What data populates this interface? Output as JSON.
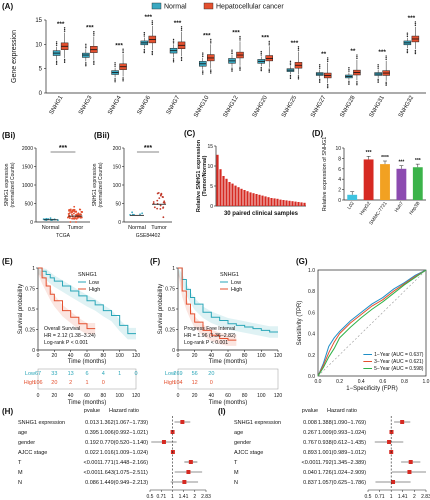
{
  "panels": {
    "A": "(A)",
    "Bi": "(Bi)",
    "Bii": "(Bii)",
    "C": "(C)",
    "D": "(D)",
    "E": "(E)",
    "F": "(F)",
    "G": "(G)",
    "H": "(H)",
    "I": "(I)"
  },
  "colors": {
    "normal": "#3aa8c1",
    "cancer": "#e4502f",
    "bar_red": "#d62a22",
    "low": "#2aa6b8",
    "high": "#e4502f"
  },
  "chart_data": [
    {
      "id": "A",
      "type": "box",
      "ylabel": "Gene expression",
      "ylim": [
        0,
        15
      ],
      "yticks": [
        0,
        5,
        10,
        15
      ],
      "legend": [
        "Normal",
        "Hepatocellular cancer"
      ],
      "legend_position": "top",
      "categories": [
        "SNHG1",
        "SNHG3",
        "SNHG4",
        "SNHG6",
        "SNHG7",
        "SNHG10",
        "SNHG12",
        "SNHG20",
        "SNHG25",
        "SNHG27",
        "SNHG28",
        "SNHG31",
        "SNHG32"
      ],
      "significance": [
        "***",
        "***",
        "***",
        "***",
        "***",
        "***",
        "***",
        "***",
        "***",
        "**",
        "**",
        "***",
        "***"
      ],
      "series": [
        {
          "name": "Normal",
          "median": [
            8.2,
            7.8,
            4.2,
            10.3,
            8.7,
            6.0,
            6.6,
            6.5,
            4.7,
            3.9,
            3.4,
            3.9,
            10.3
          ],
          "q1": [
            7.7,
            7.3,
            3.8,
            9.9,
            8.2,
            5.5,
            6.1,
            6.1,
            4.4,
            3.6,
            3.1,
            3.6,
            9.9
          ],
          "q3": [
            8.7,
            8.2,
            4.6,
            10.7,
            9.2,
            6.5,
            7.1,
            6.9,
            5.0,
            4.2,
            3.7,
            4.2,
            10.7
          ],
          "lo": [
            6.8,
            6.5,
            3.2,
            9.2,
            7.3,
            4.8,
            5.4,
            5.5,
            3.9,
            3.1,
            2.7,
            3.1,
            9.2
          ],
          "hi": [
            9.5,
            9.0,
            5.2,
            11.4,
            10.0,
            7.2,
            7.8,
            7.5,
            5.5,
            4.8,
            4.2,
            4.8,
            11.3
          ]
        },
        {
          "name": "Hepatocellular cancer",
          "median": [
            9.6,
            8.9,
            5.4,
            11.0,
            9.8,
            7.2,
            7.8,
            7.1,
            5.7,
            3.6,
            4.2,
            4.1,
            11.1
          ],
          "q1": [
            8.9,
            8.3,
            4.8,
            10.3,
            9.1,
            6.6,
            7.2,
            6.6,
            5.1,
            3.1,
            3.7,
            3.6,
            10.5
          ],
          "q3": [
            10.3,
            9.6,
            6.0,
            11.7,
            10.5,
            7.9,
            8.4,
            7.7,
            6.3,
            4.1,
            4.7,
            4.6,
            11.7
          ],
          "lo": [
            7.2,
            6.8,
            3.4,
            8.8,
            7.6,
            5.0,
            5.6,
            5.2,
            3.8,
            2.0,
            2.6,
            2.5,
            9.0
          ],
          "hi": [
            12.4,
            11.6,
            8.0,
            13.8,
            12.6,
            10.0,
            10.6,
            9.6,
            8.5,
            6.2,
            6.8,
            6.6,
            13.6
          ]
        }
      ]
    },
    {
      "id": "Bi",
      "type": "scatter",
      "ylabel": "SNHG1 expression (normalized Counts)",
      "categories": [
        "Normal",
        "Tumor"
      ],
      "xlabel": "TCGA",
      "ylim": [
        0,
        2000
      ],
      "yticks": [
        0,
        500,
        1000,
        1500,
        2000
      ],
      "significance": "***",
      "mean": [
        60,
        160
      ],
      "spread": [
        40,
        260
      ]
    },
    {
      "id": "Bii",
      "type": "scatter",
      "ylabel": "SNHG1 expression (normalized Counts)",
      "categories": [
        "Normal",
        "Tumor"
      ],
      "xlabel": "GSE84402",
      "ylim": [
        0,
        200
      ],
      "yticks": [
        0,
        50,
        100,
        150,
        200
      ],
      "significance": "***",
      "mean": [
        18,
        48
      ],
      "spread": [
        12,
        45
      ]
    },
    {
      "id": "C",
      "type": "bar",
      "ylabel": "Relative SNHG1 expression (Tumor/Normal)",
      "xlabel": "30 paired clinical samples",
      "ylim": [
        0,
        15
      ],
      "yticks": [
        0,
        5,
        10,
        15
      ],
      "values": [
        12.8,
        9.2,
        7.5,
        6.8,
        6.0,
        5.6,
        5.1,
        4.7,
        4.3,
        4.0,
        3.7,
        3.4,
        3.2,
        3.0,
        2.8,
        2.6,
        2.4,
        2.2,
        2.0,
        1.9,
        1.8,
        1.6,
        1.5,
        1.4,
        1.3,
        1.2,
        1.1,
        1.0,
        0.9,
        0.8
      ]
    },
    {
      "id": "D",
      "type": "bar",
      "ylabel": "Relative expression of SNHG1",
      "ylim": [
        0,
        10
      ],
      "yticks": [
        0,
        2,
        4,
        6,
        8,
        10
      ],
      "categories": [
        "L02",
        "HepG2",
        "SMMC-7721",
        "Huh7",
        "Hep3B"
      ],
      "values": [
        1.0,
        7.8,
        6.9,
        6.0,
        6.3
      ],
      "bar_colors": [
        "#3ec3e0",
        "#d62a22",
        "#f2a122",
        "#8c4bb0",
        "#3bb34a"
      ],
      "significance": [
        "",
        "***",
        "****",
        "***",
        "***"
      ]
    },
    {
      "id": "E",
      "type": "line",
      "title": "SNHG1",
      "legend": [
        "Low",
        "High"
      ],
      "xlabel": "Time (months)",
      "ylabel": "Survival probability",
      "xlim": [
        0,
        120
      ],
      "xticks": [
        0,
        20,
        40,
        60,
        80,
        100,
        120
      ],
      "ylim": [
        0,
        1
      ],
      "yticks": [
        0,
        0.25,
        0.5,
        0.75,
        1
      ],
      "annotation": [
        "Overall Survival",
        "HR = 2.12 (1.38−3.24)",
        "Log-rank P < 0.001"
      ],
      "series": [
        {
          "name": "Low",
          "x": [
            0,
            5,
            10,
            15,
            20,
            30,
            40,
            50,
            60,
            70,
            80,
            90,
            100,
            110,
            120
          ],
          "y": [
            1,
            0.96,
            0.92,
            0.88,
            0.84,
            0.78,
            0.72,
            0.66,
            0.6,
            0.55,
            0.48,
            0.42,
            0.3,
            0.2,
            0.2
          ]
        },
        {
          "name": "High",
          "x": [
            0,
            5,
            10,
            15,
            20,
            30,
            40,
            50,
            60,
            70
          ],
          "y": [
            1,
            0.88,
            0.78,
            0.68,
            0.6,
            0.48,
            0.4,
            0.32,
            0.26,
            0.26
          ]
        }
      ],
      "risk_table": {
        "rows": [
          "Low",
          "High"
        ],
        "times": [
          0,
          20,
          40,
          60,
          80,
          100,
          120
        ],
        "values": [
          [
            "67",
            "33",
            "13",
            "6",
            "4",
            "1",
            "0"
          ],
          [
            "106",
            "20",
            "2",
            "1",
            "0",
            "",
            ""
          ]
        ]
      }
    },
    {
      "id": "F",
      "type": "line",
      "title": "SNHG1",
      "legend": [
        "Low",
        "High"
      ],
      "xlabel": "Time (months)",
      "ylabel": "Survival probability",
      "xlim": [
        0,
        120
      ],
      "xticks": [
        0,
        20,
        40,
        60,
        80,
        100,
        120
      ],
      "ylim": [
        0,
        1
      ],
      "yticks": [
        0,
        0.25,
        0.5,
        0.75,
        1
      ],
      "annotation": [
        "Progress  Free  Interval",
        "HR = 1.96 (1.36−2.82)",
        "Log-rank P < 0.001"
      ],
      "series": [
        {
          "name": "Low",
          "x": [
            0,
            5,
            10,
            15,
            20,
            30,
            40,
            50,
            60,
            70,
            80,
            90,
            100,
            110,
            120
          ],
          "y": [
            1,
            0.86,
            0.74,
            0.64,
            0.56,
            0.46,
            0.4,
            0.36,
            0.32,
            0.3,
            0.28,
            0.26,
            0.24,
            0.22,
            0.22
          ]
        },
        {
          "name": "High",
          "x": [
            0,
            5,
            10,
            15,
            20,
            30,
            40,
            50,
            60,
            70
          ],
          "y": [
            1,
            0.72,
            0.56,
            0.44,
            0.34,
            0.24,
            0.18,
            0.14,
            0.12,
            0.12
          ]
        }
      ],
      "risk_table": {
        "rows": [
          "Low",
          "High"
        ],
        "times": [
          0,
          20,
          40,
          60,
          80,
          100,
          120
        ],
        "values": [
          [
            "269",
            "56",
            "20",
            "",
            "",
            "",
            ""
          ],
          [
            "104",
            "12",
            "0",
            "",
            "",
            "",
            ""
          ]
        ]
      }
    },
    {
      "id": "G",
      "type": "line",
      "xlabel": "1−Specificity (FPR)",
      "ylabel": "Sensitivity (TPR)",
      "xlim": [
        0,
        1
      ],
      "ylim": [
        0,
        1
      ],
      "xticks": [
        0,
        0.2,
        0.4,
        0.6,
        0.8,
        1.0
      ],
      "yticks": [
        0,
        0.2,
        0.4,
        0.6,
        0.8,
        1.0
      ],
      "legend": [
        "1−Year (AUC = 0.637)",
        "3−Year (AUC = 0.621)",
        "5−Year (AUC = 0.598)"
      ],
      "series": [
        {
          "name": "1−Year (AUC = 0.637)",
          "color": "#1f8fc7",
          "x": [
            0,
            0.05,
            0.1,
            0.15,
            0.2,
            0.3,
            0.4,
            0.5,
            0.6,
            0.7,
            0.8,
            0.9,
            1
          ],
          "y": [
            0,
            0.12,
            0.28,
            0.36,
            0.42,
            0.52,
            0.6,
            0.68,
            0.74,
            0.82,
            0.88,
            0.95,
            1
          ]
        },
        {
          "name": "3−Year (AUC = 0.621)",
          "color": "#e4502f",
          "x": [
            0,
            0.05,
            0.1,
            0.15,
            0.2,
            0.3,
            0.4,
            0.5,
            0.6,
            0.7,
            0.8,
            0.9,
            1
          ],
          "y": [
            0,
            0.1,
            0.22,
            0.32,
            0.4,
            0.5,
            0.58,
            0.66,
            0.72,
            0.8,
            0.87,
            0.94,
            1
          ]
        },
        {
          "name": "5−Year (AUC = 0.598)",
          "color": "#2fb24a",
          "x": [
            0,
            0.05,
            0.1,
            0.15,
            0.2,
            0.3,
            0.4,
            0.5,
            0.6,
            0.7,
            0.8,
            0.9,
            1
          ],
          "y": [
            0,
            0.08,
            0.18,
            0.26,
            0.36,
            0.46,
            0.55,
            0.63,
            0.7,
            0.78,
            0.86,
            0.93,
            1
          ]
        }
      ]
    },
    {
      "id": "H",
      "type": "forest",
      "headers": [
        "pvalue",
        "Hazard ratio"
      ],
      "rows": [
        {
          "label": "SNHG1 expression",
          "p": "0.013",
          "hr_text": "1.362(1.067−1.739)",
          "hr": 1.362,
          "lo": 1.067,
          "hi": 1.739
        },
        {
          "label": "age",
          "p": "0.395",
          "hr_text": "1.006(0.992−1.021)",
          "hr": 1.006,
          "lo": 0.992,
          "hi": 1.021
        },
        {
          "label": "gender",
          "p": "0.192",
          "hr_text": "0.770(0.520−1.140)",
          "hr": 0.77,
          "lo": 0.52,
          "hi": 1.14
        },
        {
          "label": "AJCC stage",
          "p": "0.022",
          "hr_text": "1.016(1.009−1.024)",
          "hr": 1.016,
          "lo": 1.009,
          "hi": 1.024
        },
        {
          "label": "T",
          "p": "<0.001",
          "hr_text": "1.771(1.448−2.166)",
          "hr": 1.771,
          "lo": 1.448,
          "hi": 2.166
        },
        {
          "label": "M",
          "p": "<0.001",
          "hr_text": "1.643(1.075−2.511)",
          "hr": 1.643,
          "lo": 1.075,
          "hi": 2.511
        },
        {
          "label": "N",
          "p": "0.086",
          "hr_text": "1.449(0.949−2.213)",
          "hr": 1.449,
          "lo": 0.949,
          "hi": 2.213
        }
      ],
      "xticks": [
        0.5,
        0.71,
        1.0,
        1.41,
        2.0,
        2.83
      ],
      "xtick_labels": [
        "0.5",
        "0.71",
        "1",
        "1.41",
        "2",
        "2.83"
      ],
      "xscale": "log"
    },
    {
      "id": "I",
      "type": "forest",
      "headers": [
        "pvalue",
        "Hazard ratio"
      ],
      "rows": [
        {
          "label": "SNHG1 expression",
          "p": "0.008",
          "hr_text": "1.388(1.090−1.769)",
          "hr": 1.388,
          "lo": 1.09,
          "hi": 1.769
        },
        {
          "label": "age",
          "p": "0.267",
          "hr_text": "1.009(0.993−1.024)",
          "hr": 1.009,
          "lo": 0.993,
          "hi": 1.024
        },
        {
          "label": "gender",
          "p": "0.767",
          "hr_text": "0.938(0.612−1.435)",
          "hr": 0.938,
          "lo": 0.612,
          "hi": 1.435
        },
        {
          "label": "AJCC stage",
          "p": "0.893",
          "hr_text": "1.001(0.989−1.012)",
          "hr": 1.001,
          "lo": 0.989,
          "hi": 1.012
        },
        {
          "label": "T",
          "p": "<0.001",
          "hr_text": "1.792(1.345−2.389)",
          "hr": 1.792,
          "lo": 1.345,
          "hi": 2.389
        },
        {
          "label": "M",
          "p": "0.040",
          "hr_text": "1.726(1.024−2.909)",
          "hr": 1.726,
          "lo": 1.024,
          "hi": 2.909
        },
        {
          "label": "N",
          "p": "0.837",
          "hr_text": "1.057(0.625−1.786)",
          "hr": 1.057,
          "lo": 0.625,
          "hi": 1.786
        }
      ],
      "xticks": [
        0.5,
        0.71,
        1.0,
        1.41,
        2.0,
        2.83
      ],
      "xtick_labels": [
        "0.5",
        "0.71",
        "1",
        "1.41",
        "2",
        "2.83"
      ],
      "xscale": "log"
    }
  ]
}
